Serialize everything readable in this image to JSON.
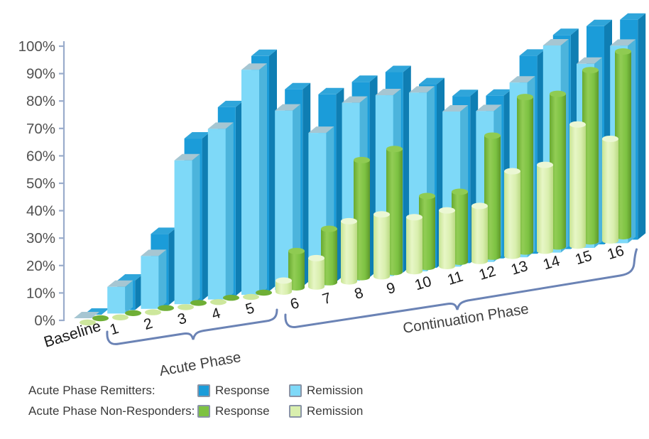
{
  "chart_data": {
    "type": "bar",
    "style": "3d-clustered-depth",
    "title": "",
    "xlabel": "",
    "ylabel": "",
    "ylim": [
      0,
      100
    ],
    "grid": false,
    "ytick_labels": [
      "0%",
      "10%",
      "20%",
      "30%",
      "40%",
      "50%",
      "60%",
      "70%",
      "80%",
      "90%",
      "100%"
    ],
    "categories": [
      "Baseline",
      "1",
      "2",
      "3",
      "4",
      "5",
      "6",
      "7",
      "8",
      "9",
      "10",
      "11",
      "12",
      "13",
      "14",
      "15",
      "16"
    ],
    "series": [
      {
        "name": "Acute Phase Remitters - Response",
        "color": "#1B9CD9",
        "values": [
          0,
          11,
          27,
          62,
          73,
          92,
          78,
          75,
          79,
          82,
          76,
          70,
          69,
          85,
          93,
          96,
          98
        ]
      },
      {
        "name": "Acute Phase Remitters - Remission",
        "color": "#7ED9F8",
        "values": [
          0,
          10,
          20,
          55,
          66,
          88,
          71,
          61,
          72,
          74,
          74,
          65,
          64,
          75,
          90,
          81,
          88
        ]
      },
      {
        "name": "Acute Phase Non-Responders - Response",
        "color": "#7DC242",
        "values": [
          0,
          0,
          0,
          0,
          0,
          0,
          15,
          22,
          48,
          51,
          30,
          30,
          52,
          67,
          67,
          76,
          83
        ]
      },
      {
        "name": "Acute Phase Non-Responders - Remission",
        "color": "#D9EFAE",
        "values": [
          0,
          0,
          0,
          0,
          0,
          0,
          5,
          12,
          25,
          26,
          23,
          24,
          24,
          37,
          38,
          54,
          46
        ]
      }
    ],
    "phase_annotations": [
      {
        "label": "Acute Phase",
        "from_category": "1",
        "to_category": "5"
      },
      {
        "label": "Continuation Phase",
        "from_category": "6",
        "to_category": "16"
      }
    ],
    "legend_position": "bottom-left"
  },
  "colors": {
    "axis_line": "#9AACCB",
    "tick_text": "#515151",
    "category_text": "#1a1a1a",
    "bracket": "#6B83B5",
    "phase_text": "#3f3f3f",
    "dark_blue": {
      "front": "#1B9CD9",
      "side": "#0F7EB3",
      "top": "#2FA5DA"
    },
    "light_blue": {
      "front": "#7ED9F8",
      "side": "#4CB4DC",
      "top": "#A6C6D2"
    },
    "dark_green": {
      "body": [
        "#68A930",
        "#92CD55",
        "#7DC242",
        "#5E992C"
      ],
      "top": "#8FCB52",
      "flat": "#6FAF36"
    },
    "light_green": {
      "body": [
        "#C7E492",
        "#E7F6C6",
        "#D9EFAE",
        "#BBDA84"
      ],
      "top": "#EBF7D4",
      "flat": "#CDE79C"
    }
  },
  "legend": {
    "rows": [
      {
        "label": "Acute Phase Remitters:",
        "items": [
          {
            "name": "Response",
            "color": "#1B9CD9"
          },
          {
            "name": "Remission",
            "color": "#7ED9F8"
          }
        ]
      },
      {
        "label": "Acute Phase Non-Responders:",
        "items": [
          {
            "name": "Response",
            "color": "#7DC242"
          },
          {
            "name": "Remission",
            "color": "#D9EFAE"
          }
        ]
      }
    ]
  }
}
